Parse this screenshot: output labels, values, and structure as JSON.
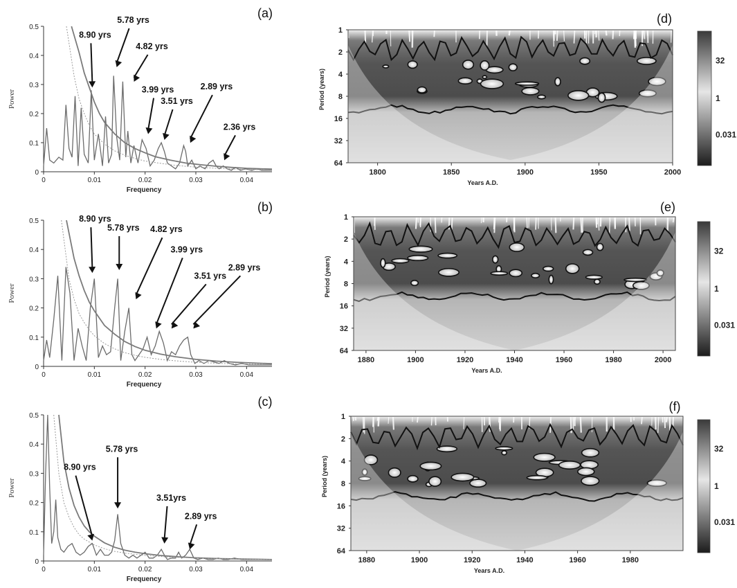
{
  "chart_data": [
    {
      "id": "a",
      "panel_label": "(a)",
      "type": "line",
      "xlabel": "Frequency",
      "ylabel": "Power",
      "xlim": [
        0,
        0.045
      ],
      "ylim": [
        0,
        0.5
      ],
      "xticks": [
        "0",
        "0.01",
        "0.02",
        "0.03",
        "0.04"
      ],
      "yticks": [
        "0",
        "0.1",
        "0.2",
        "0.3",
        "0.4",
        "0.5"
      ],
      "series": [
        {
          "x": [
            0,
            0.0006,
            0.0012,
            0.002,
            0.003,
            0.0038,
            0.0044,
            0.005,
            0.0056,
            0.0062,
            0.0068,
            0.0074,
            0.008,
            0.0088,
            0.0094,
            0.01,
            0.0108,
            0.0116,
            0.0122,
            0.0128,
            0.0134,
            0.0138,
            0.0144,
            0.015,
            0.0156,
            0.0162,
            0.0166,
            0.0172,
            0.0178,
            0.0186,
            0.0194,
            0.0202,
            0.021,
            0.0218,
            0.0226,
            0.0232,
            0.0238,
            0.0244,
            0.0252,
            0.026,
            0.0268,
            0.0276,
            0.028,
            0.0284,
            0.0292,
            0.03,
            0.0308,
            0.0318,
            0.0326,
            0.0334,
            0.034,
            0.0346,
            0.0354,
            0.0362,
            0.037,
            0.0378,
            0.0388,
            0.0398,
            0.041,
            0.042,
            0.043,
            0.045
          ],
          "values": [
            0.02,
            0.15,
            0.04,
            0.03,
            0.05,
            0.04,
            0.23,
            0.08,
            0.05,
            0.26,
            0.02,
            0.22,
            0.06,
            0.03,
            0.28,
            0.04,
            0.13,
            0.02,
            0.19,
            0.03,
            0.06,
            0.33,
            0.12,
            0.04,
            0.31,
            0.05,
            0.14,
            0.03,
            0.09,
            0.03,
            0.11,
            0.08,
            0.02,
            0.04,
            0.08,
            0.1,
            0.07,
            0.03,
            0.02,
            0.01,
            0.03,
            0.09,
            0.07,
            0.02,
            0.04,
            0.01,
            0.02,
            0.01,
            0.03,
            0.04,
            0.02,
            0.01,
            0.02,
            0.01,
            0.005,
            0.015,
            0.005,
            0.01,
            0.005,
            0.01,
            0.005,
            0.005
          ]
        },
        {
          "x": [
            0.0055,
            0.007,
            0.008,
            0.009,
            0.01,
            0.011,
            0.012,
            0.014,
            0.016,
            0.018,
            0.02,
            0.022,
            0.025,
            0.028,
            0.031,
            0.034,
            0.037,
            0.04,
            0.045
          ],
          "values": [
            0.5,
            0.41,
            0.34,
            0.29,
            0.24,
            0.2,
            0.17,
            0.13,
            0.1,
            0.08,
            0.065,
            0.052,
            0.04,
            0.03,
            0.024,
            0.019,
            0.015,
            0.012,
            0.009
          ]
        },
        {
          "x": [
            0.0045,
            0.006,
            0.007,
            0.008,
            0.009,
            0.01,
            0.012,
            0.014,
            0.016,
            0.018,
            0.02,
            0.023,
            0.026,
            0.03,
            0.034,
            0.038,
            0.045
          ],
          "values": [
            0.5,
            0.33,
            0.25,
            0.2,
            0.16,
            0.13,
            0.095,
            0.072,
            0.057,
            0.046,
            0.037,
            0.029,
            0.022,
            0.016,
            0.012,
            0.009,
            0.006
          ]
        }
      ],
      "annotations": [
        {
          "text": "8.90 yrs",
          "x": 0.0096,
          "y": 0.28
        },
        {
          "text": "5.78 yrs",
          "x": 0.0144,
          "y": 0.35
        },
        {
          "text": "4.82 yrs",
          "x": 0.0178,
          "y": 0.3
        },
        {
          "text": "3.99 yrs",
          "x": 0.0206,
          "y": 0.12
        },
        {
          "text": "3.51 yrs",
          "x": 0.0238,
          "y": 0.1
        },
        {
          "text": "2.89 yrs",
          "x": 0.0289,
          "y": 0.09
        },
        {
          "text": "2.36 yrs",
          "x": 0.0356,
          "y": 0.03
        }
      ]
    },
    {
      "id": "b",
      "panel_label": "(b)",
      "type": "line",
      "xlabel": "Frequency",
      "ylabel": "Power",
      "xlim": [
        0,
        0.045
      ],
      "ylim": [
        0,
        0.5
      ],
      "xticks": [
        "0",
        "0.01",
        "0.02",
        "0.03",
        "0.04"
      ],
      "yticks": [
        "0",
        "0.1",
        "0.2",
        "0.3",
        "0.4",
        "0.5"
      ],
      "series": [
        {
          "x": [
            0,
            0.0006,
            0.0012,
            0.002,
            0.0028,
            0.0036,
            0.0044,
            0.0052,
            0.006,
            0.0068,
            0.0076,
            0.0084,
            0.0092,
            0.01,
            0.0108,
            0.0116,
            0.0124,
            0.0132,
            0.014,
            0.0146,
            0.0152,
            0.016,
            0.0168,
            0.0174,
            0.018,
            0.0188,
            0.0196,
            0.0204,
            0.0212,
            0.022,
            0.0228,
            0.0236,
            0.0244,
            0.0252,
            0.026,
            0.0268,
            0.0276,
            0.0284,
            0.029,
            0.0298,
            0.0306,
            0.0316,
            0.0326,
            0.0336,
            0.0346,
            0.0356,
            0.0366,
            0.0378,
            0.039,
            0.0404,
            0.042,
            0.045
          ],
          "values": [
            0.02,
            0.09,
            0.03,
            0.16,
            0.31,
            0.02,
            0.34,
            0.25,
            0.02,
            0.13,
            0.07,
            0.02,
            0.2,
            0.3,
            0.03,
            0.07,
            0.04,
            0.05,
            0.2,
            0.3,
            0.02,
            0.12,
            0.2,
            0.04,
            0.02,
            0.04,
            0.06,
            0.1,
            0.04,
            0.07,
            0.12,
            0.08,
            0.02,
            0.05,
            0.04,
            0.07,
            0.09,
            0.1,
            0.04,
            0.01,
            0.02,
            0.01,
            0.02,
            0.015,
            0.01,
            0.02,
            0.01,
            0.005,
            0.01,
            0.005,
            0.005,
            0.005
          ]
        },
        {
          "x": [
            0.0045,
            0.006,
            0.007,
            0.008,
            0.009,
            0.01,
            0.012,
            0.014,
            0.016,
            0.018,
            0.02,
            0.023,
            0.026,
            0.03,
            0.034,
            0.038,
            0.045
          ],
          "values": [
            0.5,
            0.37,
            0.31,
            0.26,
            0.22,
            0.19,
            0.14,
            0.11,
            0.085,
            0.068,
            0.055,
            0.042,
            0.033,
            0.024,
            0.018,
            0.014,
            0.009
          ]
        },
        {
          "x": [
            0.0035,
            0.005,
            0.006,
            0.007,
            0.008,
            0.009,
            0.01,
            0.012,
            0.014,
            0.016,
            0.018,
            0.02,
            0.023,
            0.026,
            0.03,
            0.035,
            0.045
          ],
          "values": [
            0.5,
            0.3,
            0.23,
            0.18,
            0.15,
            0.125,
            0.105,
            0.078,
            0.06,
            0.047,
            0.038,
            0.031,
            0.024,
            0.019,
            0.014,
            0.01,
            0.006
          ]
        }
      ],
      "annotations": [
        {
          "text": "8.90 yrs",
          "x": 0.0096,
          "y": 0.31
        },
        {
          "text": "5.78 yrs",
          "x": 0.0149,
          "y": 0.32
        },
        {
          "text": "4.82 yrs",
          "x": 0.0182,
          "y": 0.22
        },
        {
          "text": "3.99 yrs",
          "x": 0.0222,
          "y": 0.12
        },
        {
          "text": "3.51 yrs",
          "x": 0.0252,
          "y": 0.12
        },
        {
          "text": "2.89 yrs",
          "x": 0.0295,
          "y": 0.12
        }
      ]
    },
    {
      "id": "c",
      "panel_label": "(c)",
      "type": "line",
      "xlabel": "Frequency",
      "ylabel": "Power",
      "xlim": [
        0,
        0.045
      ],
      "ylim": [
        0,
        0.5
      ],
      "xticks": [
        "0",
        "0.01",
        "0.02",
        "0.03",
        "0.04"
      ],
      "yticks": [
        "0",
        "0.1",
        "0.2",
        "0.3",
        "0.4",
        "0.5"
      ],
      "series": [
        {
          "x": [
            0,
            0.0004,
            0.0008,
            0.0012,
            0.0016,
            0.002,
            0.0024,
            0.0028,
            0.0034,
            0.004,
            0.0048,
            0.0056,
            0.0064,
            0.0072,
            0.008,
            0.0088,
            0.0096,
            0.0104,
            0.0112,
            0.012,
            0.0128,
            0.0134,
            0.014,
            0.0146,
            0.0152,
            0.016,
            0.0168,
            0.0176,
            0.0184,
            0.0192,
            0.02,
            0.0208,
            0.0216,
            0.0224,
            0.0232,
            0.0238,
            0.0244,
            0.0252,
            0.026,
            0.0266,
            0.0272,
            0.028,
            0.0288,
            0.0296,
            0.0304,
            0.0314,
            0.0324,
            0.0334,
            0.0344,
            0.0354,
            0.0364,
            0.0376,
            0.039,
            0.0404,
            0.042,
            0.045
          ],
          "values": [
            0.02,
            0.3,
            0.5,
            0.25,
            0.06,
            0.1,
            0.21,
            0.08,
            0.04,
            0.03,
            0.05,
            0.06,
            0.03,
            0.02,
            0.03,
            0.05,
            0.06,
            0.02,
            0.04,
            0.02,
            0.02,
            0.03,
            0.07,
            0.16,
            0.06,
            0.02,
            0.01,
            0.02,
            0.01,
            0.02,
            0.03,
            0.01,
            0.01,
            0.02,
            0.04,
            0.02,
            0.005,
            0.01,
            0.01,
            0.03,
            0.01,
            0.02,
            0.04,
            0.01,
            0.005,
            0.01,
            0.005,
            0.005,
            0.01,
            0.005,
            0.005,
            0.01,
            0.005,
            0.005,
            0.005,
            0.005
          ]
        },
        {
          "x": [
            0.003,
            0.004,
            0.005,
            0.006,
            0.007,
            0.008,
            0.009,
            0.01,
            0.012,
            0.014,
            0.016,
            0.018,
            0.02,
            0.023,
            0.026,
            0.03,
            0.035,
            0.045
          ],
          "values": [
            0.5,
            0.34,
            0.25,
            0.19,
            0.15,
            0.12,
            0.1,
            0.085,
            0.062,
            0.047,
            0.037,
            0.03,
            0.025,
            0.019,
            0.015,
            0.011,
            0.008,
            0.005
          ]
        },
        {
          "x": [
            0.002,
            0.003,
            0.004,
            0.005,
            0.006,
            0.007,
            0.008,
            0.01,
            0.012,
            0.014,
            0.016,
            0.02,
            0.025,
            0.03,
            0.035,
            0.045
          ],
          "values": [
            0.5,
            0.3,
            0.2,
            0.15,
            0.115,
            0.09,
            0.075,
            0.055,
            0.042,
            0.033,
            0.027,
            0.019,
            0.013,
            0.01,
            0.008,
            0.005
          ]
        }
      ],
      "annotations": [
        {
          "text": "8.90 yrs",
          "x": 0.0096,
          "y": 0.06
        },
        {
          "text": "5.78 yrs",
          "x": 0.0146,
          "y": 0.17
        },
        {
          "text": "3.51yrs",
          "x": 0.0238,
          "y": 0.05
        },
        {
          "text": "2.89 yrs",
          "x": 0.0288,
          "y": 0.03
        }
      ]
    },
    {
      "id": "d",
      "panel_label": "(d)",
      "type": "heatmap",
      "xlabel": "Years A.D.",
      "ylabel": "Period (years)",
      "xlim": [
        1780,
        2000
      ],
      "xticks": [
        "1800",
        "1850",
        "1900",
        "1950",
        "2000"
      ],
      "ylim": [
        1,
        64
      ],
      "y_scale": "log2",
      "yticks": [
        "1",
        "2",
        "4",
        "8",
        "16",
        "32",
        "64"
      ],
      "colorbar_ticks": [
        "32",
        "1",
        "0.031"
      ]
    },
    {
      "id": "e",
      "panel_label": "(e)",
      "type": "heatmap",
      "xlabel": "Years A.D.",
      "ylabel": "Period (years)",
      "xlim": [
        1875,
        2005
      ],
      "xticks": [
        "1880",
        "1900",
        "1920",
        "1940",
        "1960",
        "1980",
        "2000"
      ],
      "ylim": [
        1,
        64
      ],
      "y_scale": "log2",
      "yticks": [
        "1",
        "2",
        "4",
        "8",
        "16",
        "32",
        "64"
      ],
      "colorbar_ticks": [
        "32",
        "1",
        "0.031"
      ]
    },
    {
      "id": "f",
      "panel_label": "(f)",
      "type": "heatmap",
      "xlabel": "Years A.D.",
      "ylabel": "Period (years)",
      "xlim": [
        1874,
        2000
      ],
      "xticks": [
        "1880",
        "1900",
        "1920",
        "1940",
        "1960",
        "1980"
      ],
      "ylim": [
        1,
        64
      ],
      "y_scale": "log2",
      "yticks": [
        "1",
        "2",
        "4",
        "8",
        "16",
        "32",
        "64"
      ],
      "colorbar_ticks": [
        "32",
        "1",
        "0.031"
      ]
    }
  ]
}
